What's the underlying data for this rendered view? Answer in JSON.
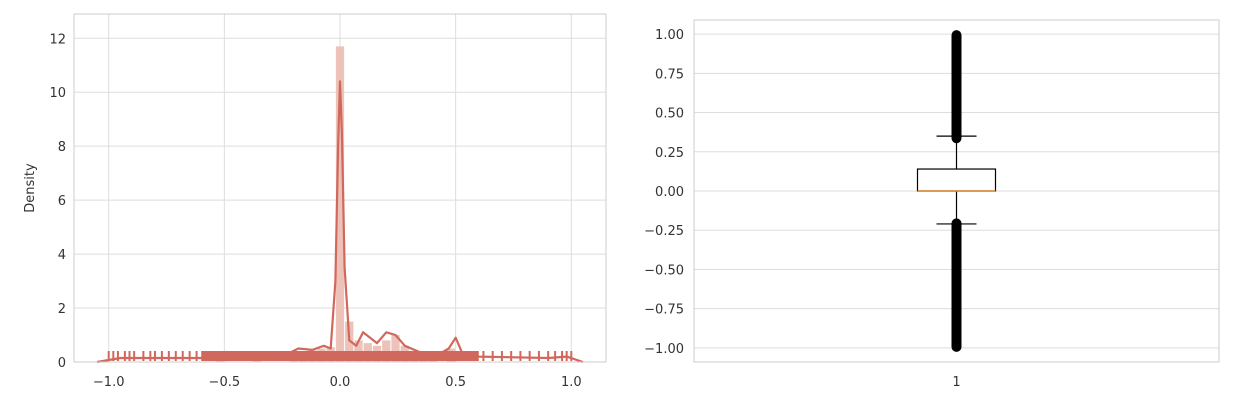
{
  "chart_data": [
    {
      "type": "histogram",
      "title": "",
      "xlabel": "",
      "ylabel": "Density",
      "xlim": [
        -1.15,
        1.15
      ],
      "ylim": [
        0,
        12.9
      ],
      "grid": true,
      "x_ticks": [
        -1.0,
        -0.5,
        0.0,
        0.5,
        1.0
      ],
      "x_tick_labels": [
        "−1.0",
        "−0.5",
        "0.0",
        "0.5",
        "1.0"
      ],
      "y_ticks": [
        0,
        2,
        4,
        6,
        8,
        10,
        12
      ],
      "y_tick_labels": [
        "0",
        "2",
        "4",
        "6",
        "8",
        "10",
        "12"
      ],
      "colors": {
        "hist": "#ebbfb5",
        "kde": "#d1685d",
        "rug": "#d1685d",
        "grid": "#dddddd"
      },
      "bin_width": 0.04,
      "bins": [
        {
          "x": -0.52,
          "y": 0.12
        },
        {
          "x": -0.36,
          "y": 0.1
        },
        {
          "x": -0.2,
          "y": 0.3
        },
        {
          "x": -0.16,
          "y": 0.35
        },
        {
          "x": -0.12,
          "y": 0.45
        },
        {
          "x": -0.08,
          "y": 0.5
        },
        {
          "x": -0.04,
          "y": 0.55
        },
        {
          "x": 0.0,
          "y": 11.7
        },
        {
          "x": 0.04,
          "y": 1.5
        },
        {
          "x": 0.08,
          "y": 0.8
        },
        {
          "x": 0.12,
          "y": 0.7
        },
        {
          "x": 0.16,
          "y": 0.6
        },
        {
          "x": 0.2,
          "y": 0.8
        },
        {
          "x": 0.24,
          "y": 1.0
        },
        {
          "x": 0.28,
          "y": 0.6
        },
        {
          "x": 0.32,
          "y": 0.4
        },
        {
          "x": 0.36,
          "y": 0.3
        },
        {
          "x": 0.4,
          "y": 0.3
        },
        {
          "x": 0.48,
          "y": 0.5
        }
      ],
      "kde": [
        {
          "x": -1.05,
          "y": 0.0
        },
        {
          "x": -0.95,
          "y": 0.15
        },
        {
          "x": -0.6,
          "y": 0.15
        },
        {
          "x": -0.5,
          "y": 0.25
        },
        {
          "x": -0.4,
          "y": 0.15
        },
        {
          "x": -0.25,
          "y": 0.2
        },
        {
          "x": -0.18,
          "y": 0.5
        },
        {
          "x": -0.12,
          "y": 0.45
        },
        {
          "x": -0.07,
          "y": 0.6
        },
        {
          "x": -0.04,
          "y": 0.5
        },
        {
          "x": -0.02,
          "y": 3.0
        },
        {
          "x": -0.008,
          "y": 8.0
        },
        {
          "x": 0.0,
          "y": 10.4
        },
        {
          "x": 0.008,
          "y": 8.5
        },
        {
          "x": 0.02,
          "y": 3.5
        },
        {
          "x": 0.04,
          "y": 0.8
        },
        {
          "x": 0.07,
          "y": 0.6
        },
        {
          "x": 0.1,
          "y": 1.1
        },
        {
          "x": 0.13,
          "y": 0.9
        },
        {
          "x": 0.16,
          "y": 0.7
        },
        {
          "x": 0.2,
          "y": 1.1
        },
        {
          "x": 0.24,
          "y": 1.0
        },
        {
          "x": 0.28,
          "y": 0.6
        },
        {
          "x": 0.35,
          "y": 0.35
        },
        {
          "x": 0.43,
          "y": 0.3
        },
        {
          "x": 0.47,
          "y": 0.5
        },
        {
          "x": 0.5,
          "y": 0.9
        },
        {
          "x": 0.53,
          "y": 0.3
        },
        {
          "x": 0.6,
          "y": 0.2
        },
        {
          "x": 0.9,
          "y": 0.15
        },
        {
          "x": 0.98,
          "y": 0.2
        },
        {
          "x": 1.05,
          "y": 0.0
        }
      ],
      "rug_ticks": [
        -1.0,
        -0.98,
        -0.96,
        -0.93,
        -0.91,
        -0.89,
        -0.85,
        -0.82,
        -0.8,
        -0.77,
        -0.74,
        -0.71,
        -0.68,
        -0.65,
        -0.62,
        0.62,
        0.66,
        0.7,
        0.74,
        0.78,
        0.82,
        0.86,
        0.9,
        0.93,
        0.96,
        0.98,
        1.0
      ],
      "rug_band": [
        -0.6,
        0.6
      ]
    },
    {
      "type": "boxplot",
      "title": "",
      "xlabel": "",
      "ylabel": "",
      "ylim": [
        -1.09,
        1.09
      ],
      "grid": true,
      "x_tick_labels": [
        "1"
      ],
      "y_ticks": [
        -1.0,
        -0.75,
        -0.5,
        -0.25,
        0.0,
        0.25,
        0.5,
        0.75,
        1.0
      ],
      "y_tick_labels": [
        "−1.00",
        "−0.75",
        "−0.50",
        "−0.25",
        "0.00",
        "0.25",
        "0.50",
        "0.75",
        "1.00"
      ],
      "box": {
        "q1": 0.0,
        "median": 0.0,
        "q3": 0.14,
        "whisker_low": -0.21,
        "whisker_high": 0.35,
        "outliers_low_range": [
          -1.0,
          -0.2
        ],
        "outliers_high_range": [
          0.33,
          1.0
        ]
      },
      "colors": {
        "box": "#000000",
        "median": "#e08a2e",
        "outlier": "#000000",
        "grid": "#dddddd"
      }
    }
  ]
}
